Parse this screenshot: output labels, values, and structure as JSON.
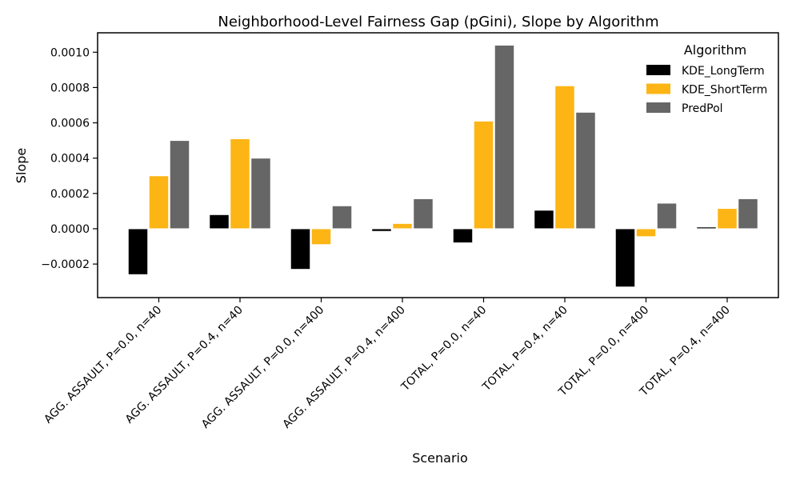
{
  "chart_data": {
    "type": "bar",
    "title": "Neighborhood-Level Fairness Gap (pGini), Slope by Algorithm",
    "xlabel": "Scenario",
    "ylabel": "Slope",
    "ylim": [
      -0.00039,
      0.00111
    ],
    "yticks": [
      -0.0002,
      0.0,
      0.0002,
      0.0004,
      0.0006,
      0.0008,
      0.001
    ],
    "ytick_labels": [
      "−0.0002",
      "0.0000",
      "0.0002",
      "0.0004",
      "0.0006",
      "0.0008",
      "0.0010"
    ],
    "categories": [
      "AGG. ASSAULT, P=0.0, n=40",
      "AGG. ASSAULT, P=0.4, n=40",
      "AGG. ASSAULT, P=0.0, n=400",
      "AGG. ASSAULT, P=0.4, n=400",
      "TOTAL, P=0.0, n=40",
      "TOTAL, P=0.4, n=40",
      "TOTAL, P=0.0, n=400",
      "TOTAL, P=0.4, n=400"
    ],
    "legend_title": "Algorithm",
    "legend_position": "top-right",
    "series": [
      {
        "name": "KDE_LongTerm",
        "color": "#000000",
        "values": [
          -0.00026,
          8e-05,
          -0.00023,
          -1.5e-05,
          -8e-05,
          0.000105,
          -0.00033,
          1e-05
        ]
      },
      {
        "name": "KDE_ShortTerm",
        "color": "#FDB515",
        "values": [
          0.0003,
          0.00051,
          -9e-05,
          3e-05,
          0.00061,
          0.00081,
          -4.5e-05,
          0.000115
        ]
      },
      {
        "name": "PredPol",
        "color": "#666666",
        "values": [
          0.0005,
          0.0004,
          0.00013,
          0.00017,
          0.00104,
          0.00066,
          0.000145,
          0.00017
        ]
      }
    ]
  }
}
